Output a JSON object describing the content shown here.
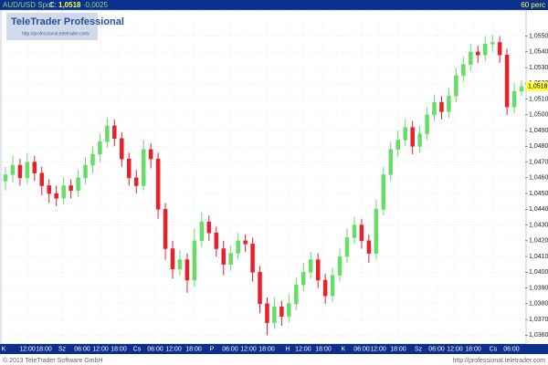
{
  "chart_data": {
    "type": "candlestick",
    "symbol": "AUD/USD Spot",
    "close_caption": "C:",
    "close_text": "1,0518",
    "change_text": "-0,0025",
    "interval": "60 perc",
    "logo_title": "TeleTrader Professional",
    "logo_url": "http://professional.teletrader.com/",
    "up_color": "#66dd66",
    "down_color": "#e8202a",
    "grid": true,
    "xlim": [
      -0.5,
      71.5
    ],
    "ylim": [
      1.0355,
      1.0566
    ],
    "open": [
      1.0458,
      1.0462,
      1.0468,
      1.046,
      1.047,
      1.0463,
      1.0455,
      1.045,
      1.0447,
      1.0455,
      1.0452,
      1.046,
      1.0468,
      1.0475,
      1.0483,
      1.0493,
      1.0485,
      1.0472,
      1.046,
      1.0455,
      1.0478,
      1.0472,
      1.044,
      1.0415,
      1.0402,
      1.0408,
      1.0395,
      1.042,
      1.0432,
      1.0425,
      1.0415,
      1.0405,
      1.0412,
      1.042,
      1.0418,
      1.04,
      1.038,
      1.0368,
      1.0378,
      1.0372,
      1.038,
      1.0392,
      1.04,
      1.0408,
      1.0395,
      1.0385,
      1.0398,
      1.041,
      1.0422,
      1.043,
      1.042,
      1.0412,
      1.044,
      1.0462,
      1.0478,
      1.0484,
      1.0492,
      1.048,
      1.0488,
      1.05,
      1.0508,
      1.0502,
      1.0512,
      1.0525,
      1.0532,
      1.054,
      1.0538,
      1.0545,
      1.0546,
      1.0538,
      1.0505,
      1.0515
    ],
    "high": [
      1.0467,
      1.0474,
      1.0472,
      1.0476,
      1.0474,
      1.0467,
      1.0459,
      1.0455,
      1.046,
      1.0459,
      1.0465,
      1.0473,
      1.048,
      1.0488,
      1.0498,
      1.0497,
      1.0489,
      1.0476,
      1.0465,
      1.0484,
      1.0482,
      1.0476,
      1.0444,
      1.042,
      1.0414,
      1.0412,
      1.0428,
      1.0438,
      1.0436,
      1.0429,
      1.042,
      1.0417,
      1.0425,
      1.0424,
      1.0422,
      1.0404,
      1.0384,
      1.0384,
      1.0382,
      1.0386,
      1.0397,
      1.0406,
      1.0413,
      1.0412,
      1.0399,
      1.0403,
      1.0415,
      1.0428,
      1.0435,
      1.0434,
      1.0424,
      1.0446,
      1.0467,
      1.0483,
      1.049,
      1.0497,
      1.0496,
      1.0493,
      1.0505,
      1.0513,
      1.0512,
      1.0517,
      1.053,
      1.0537,
      1.0545,
      1.0544,
      1.055,
      1.0551,
      1.055,
      1.0542,
      1.052,
      1.0522
    ],
    "low": [
      1.0452,
      1.0457,
      1.0455,
      1.0456,
      1.0458,
      1.0449,
      1.0444,
      1.0442,
      1.0443,
      1.0447,
      1.0448,
      1.0456,
      1.0463,
      1.047,
      1.0479,
      1.048,
      1.0467,
      1.0455,
      1.045,
      1.0452,
      1.0466,
      1.0434,
      1.0408,
      1.0396,
      1.0398,
      1.0387,
      1.0391,
      1.0416,
      1.042,
      1.041,
      1.0398,
      1.0401,
      1.0408,
      1.0413,
      1.0394,
      1.0374,
      1.036,
      1.0364,
      1.0366,
      1.0368,
      1.0376,
      1.0388,
      1.0396,
      1.039,
      1.038,
      1.0381,
      1.0394,
      1.0406,
      1.0418,
      1.0415,
      1.0406,
      1.0408,
      1.0436,
      1.0458,
      1.0473,
      1.048,
      1.0475,
      1.0476,
      1.0484,
      1.0496,
      1.0497,
      1.0498,
      1.0508,
      1.0521,
      1.0528,
      1.0533,
      1.0534,
      1.054,
      1.0533,
      1.05,
      1.0501,
      1.0512
    ],
    "close": [
      1.0462,
      1.0468,
      1.046,
      1.047,
      1.0463,
      1.0455,
      1.045,
      1.0447,
      1.0455,
      1.0452,
      1.046,
      1.0468,
      1.0475,
      1.0483,
      1.0493,
      1.0485,
      1.0472,
      1.046,
      1.0455,
      1.0478,
      1.0472,
      1.044,
      1.0415,
      1.0402,
      1.0408,
      1.0395,
      1.042,
      1.0432,
      1.0425,
      1.0415,
      1.0405,
      1.0412,
      1.042,
      1.0418,
      1.04,
      1.038,
      1.0368,
      1.0378,
      1.0372,
      1.038,
      1.0392,
      1.04,
      1.0408,
      1.0395,
      1.0385,
      1.0398,
      1.041,
      1.0422,
      1.043,
      1.042,
      1.0412,
      1.044,
      1.0462,
      1.0478,
      1.0484,
      1.0492,
      1.048,
      1.0488,
      1.05,
      1.0508,
      1.0502,
      1.0512,
      1.0525,
      1.0532,
      1.054,
      1.0538,
      1.0545,
      1.0546,
      1.0538,
      1.0505,
      1.0515,
      1.0518
    ],
    "last_price": {
      "value": 1.0518,
      "label": "1,0518"
    },
    "yticks": [
      {
        "value": 1.036,
        "label": "1,0360"
      },
      {
        "value": 1.037,
        "label": "1,0370"
      },
      {
        "value": 1.038,
        "label": "1,0380"
      },
      {
        "value": 1.039,
        "label": "1,0390"
      },
      {
        "value": 1.04,
        "label": "1,0400"
      },
      {
        "value": 1.041,
        "label": "1,0410"
      },
      {
        "value": 1.042,
        "label": "1,0420"
      },
      {
        "value": 1.043,
        "label": "1,0430"
      },
      {
        "value": 1.044,
        "label": "1,0440"
      },
      {
        "value": 1.045,
        "label": "1,0450"
      },
      {
        "value": 1.046,
        "label": "1,0460"
      },
      {
        "value": 1.047,
        "label": "1,0470"
      },
      {
        "value": 1.048,
        "label": "1,0480"
      },
      {
        "value": 1.049,
        "label": "1,0490"
      },
      {
        "value": 1.05,
        "label": "1,0500"
      },
      {
        "value": 1.051,
        "label": "1,0510"
      },
      {
        "value": 1.052,
        "label": "1,0520"
      },
      {
        "value": 1.053,
        "label": "1,0530"
      },
      {
        "value": 1.054,
        "label": "1,0540"
      },
      {
        "value": 1.055,
        "label": "1,0550"
      }
    ],
    "xticks": [
      {
        "value": -0.25,
        "label": "K"
      },
      {
        "value": 3.02,
        "label": "12:00"
      },
      {
        "value": 5.28,
        "label": "18:00"
      },
      {
        "value": 7.79,
        "label": "Sz"
      },
      {
        "value": 10.56,
        "label": "06:00"
      },
      {
        "value": 13.07,
        "label": "12:00"
      },
      {
        "value": 15.58,
        "label": "18:00"
      },
      {
        "value": 18.1,
        "label": "Cs"
      },
      {
        "value": 20.61,
        "label": "06:00"
      },
      {
        "value": 23.12,
        "label": "12:00"
      },
      {
        "value": 25.89,
        "label": "18:00"
      },
      {
        "value": 28.4,
        "label": "P"
      },
      {
        "value": 30.91,
        "label": "06:00"
      },
      {
        "value": 33.43,
        "label": "12:00"
      },
      {
        "value": 35.94,
        "label": "18:00"
      },
      {
        "value": 38.83,
        "label": "H"
      },
      {
        "value": 40.96,
        "label": "12:00"
      },
      {
        "value": 43.73,
        "label": "18:00"
      },
      {
        "value": 46.49,
        "label": "K"
      },
      {
        "value": 49.01,
        "label": "06:00"
      },
      {
        "value": 51.27,
        "label": "12:00"
      },
      {
        "value": 54.03,
        "label": "18:00"
      },
      {
        "value": 56.8,
        "label": "Sz"
      },
      {
        "value": 59.31,
        "label": "06:00"
      },
      {
        "value": 61.82,
        "label": "12:00"
      },
      {
        "value": 64.34,
        "label": "18:00"
      },
      {
        "value": 67.1,
        "label": "Cs"
      },
      {
        "value": 69.61,
        "label": "06:00"
      }
    ]
  },
  "footer": {
    "copyright": "© 2013 TeleTrader Software GmbH",
    "url": "http://professional.teletrader.com"
  }
}
